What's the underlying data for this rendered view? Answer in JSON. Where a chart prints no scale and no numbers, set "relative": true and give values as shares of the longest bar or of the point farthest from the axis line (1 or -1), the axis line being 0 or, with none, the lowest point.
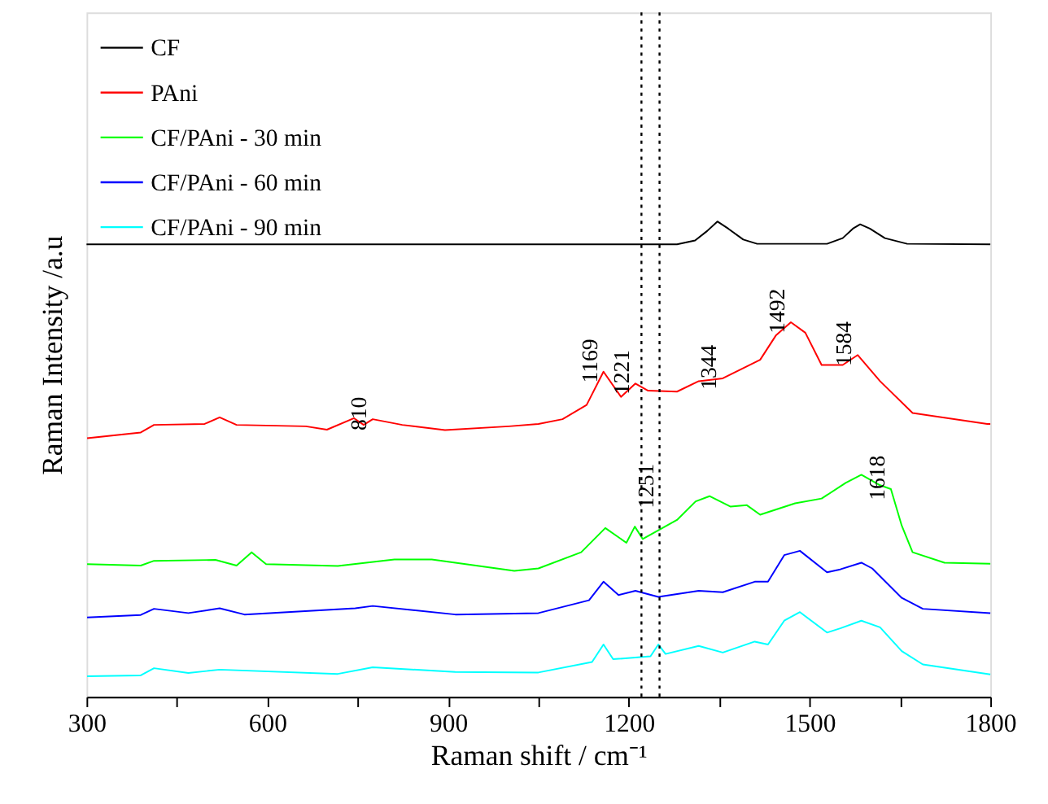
{
  "chart_data": {
    "type": "line",
    "relative": true,
    "xlabel": "Raman shift / cm⁻¹",
    "ylabel": "Raman Intensity /a.u",
    "xlim": [
      300,
      1800
    ],
    "xticks": [
      300,
      {
        "value": 450,
        "label": null
      },
      600,
      {
        "value": 750,
        "label": null
      },
      900,
      {
        "value": 1050,
        "label": null
      },
      1200,
      {
        "value": 1350,
        "label": null
      },
      1500,
      {
        "value": 1650,
        "label": null
      },
      1800
    ],
    "tick_labels": "x",
    "grid": false,
    "legend": "top left",
    "line_style": "solid",
    "marker": "none",
    "series": [
      {
        "name": "CF",
        "color": "#000000",
        "x": [
          300,
          1280,
          1310,
          1330,
          1347,
          1365,
          1390,
          1413,
          1529,
          1555,
          1572,
          1584,
          1600,
          1625,
          1662,
          1800
        ],
        "values": [
          0.952,
          0.952,
          0.96,
          0.98,
          1.0,
          0.985,
          0.962,
          0.953,
          0.953,
          0.965,
          0.985,
          0.994,
          0.985,
          0.965,
          0.953,
          0.952
        ]
      },
      {
        "name": "PAni",
        "color": "#ff0000",
        "x": [
          301,
          390,
          412,
          496,
          521,
          549,
          664,
          699,
          744,
          760,
          775,
          824,
          895,
          1001,
          1050,
          1090,
          1130,
          1158,
          1187,
          1211,
          1232,
          1280,
          1316,
          1356,
          1418,
          1444,
          1469,
          1493,
          1520,
          1555,
          1580,
          1617,
          1671,
          1795,
          1800
        ],
        "values": [
          0.544,
          0.556,
          0.572,
          0.574,
          0.588,
          0.572,
          0.569,
          0.562,
          0.586,
          0.572,
          0.584,
          0.572,
          0.561,
          0.569,
          0.574,
          0.584,
          0.614,
          0.684,
          0.631,
          0.659,
          0.644,
          0.642,
          0.664,
          0.67,
          0.709,
          0.76,
          0.788,
          0.766,
          0.698,
          0.698,
          0.719,
          0.664,
          0.597,
          0.574,
          0.574
        ]
      },
      {
        "name": "CF/PAni - 30 min",
        "color": "#00ff00",
        "x": [
          301,
          390,
          412,
          514,
          549,
          574,
          598,
          717,
          811,
          873,
          1010,
          1050,
          1121,
          1161,
          1196,
          1210,
          1223,
          1280,
          1311,
          1334,
          1369,
          1396,
          1418,
          1476,
          1520,
          1560,
          1586,
          1617,
          1635,
          1653,
          1671,
          1724,
          1800
        ],
        "values": [
          0.279,
          0.276,
          0.286,
          0.288,
          0.276,
          0.304,
          0.279,
          0.275,
          0.289,
          0.289,
          0.265,
          0.27,
          0.304,
          0.355,
          0.324,
          0.358,
          0.332,
          0.372,
          0.411,
          0.422,
          0.4,
          0.403,
          0.383,
          0.407,
          0.417,
          0.45,
          0.467,
          0.445,
          0.437,
          0.36,
          0.304,
          0.282,
          0.28
        ]
      },
      {
        "name": "CF/PAni - 60 min",
        "color": "#0000ff",
        "x": [
          301,
          390,
          412,
          469,
          521,
          562,
          746,
          775,
          912,
          1050,
          1134,
          1158,
          1183,
          1211,
          1249,
          1316,
          1356,
          1409,
          1431,
          1458,
          1484,
          1529,
          1551,
          1586,
          1604,
          1653,
          1688,
          1800
        ],
        "values": [
          0.167,
          0.172,
          0.185,
          0.176,
          0.186,
          0.173,
          0.186,
          0.191,
          0.173,
          0.176,
          0.203,
          0.242,
          0.214,
          0.223,
          0.21,
          0.223,
          0.22,
          0.242,
          0.242,
          0.298,
          0.307,
          0.262,
          0.268,
          0.282,
          0.27,
          0.208,
          0.185,
          0.176
        ]
      },
      {
        "name": "CF/PAni - 90 min",
        "color": "#00ffff",
        "x": [
          301,
          390,
          412,
          469,
          521,
          717,
          775,
          912,
          1050,
          1139,
          1158,
          1174,
          1236,
          1249,
          1261,
          1316,
          1356,
          1409,
          1431,
          1458,
          1484,
          1529,
          1551,
          1586,
          1617,
          1653,
          1688,
          1800
        ],
        "values": [
          0.043,
          0.045,
          0.06,
          0.05,
          0.057,
          0.048,
          0.062,
          0.052,
          0.051,
          0.073,
          0.11,
          0.079,
          0.085,
          0.11,
          0.09,
          0.107,
          0.093,
          0.116,
          0.11,
          0.16,
          0.178,
          0.135,
          0.144,
          0.16,
          0.146,
          0.096,
          0.068,
          0.047
        ]
      }
    ],
    "ref_lines": [
      {
        "axis": "x",
        "value": 1221,
        "color": "#000000",
        "line_style": "dotted"
      },
      {
        "axis": "x",
        "value": 1251,
        "color": "#000000",
        "line_style": "dotted"
      }
    ],
    "annotations": [
      {
        "text": "810",
        "x": 775,
        "y": 0.584
      },
      {
        "text": "1169",
        "x": 1158,
        "y": 0.684
      },
      {
        "text": "1221",
        "x": 1211,
        "y": 0.659
      },
      {
        "text": "1344",
        "x": 1356,
        "y": 0.67
      },
      {
        "text": "1492",
        "x": 1469,
        "y": 0.788
      },
      {
        "text": "1584",
        "x": 1580,
        "y": 0.719
      },
      {
        "text": "1251",
        "x": 1251,
        "y": 0.42
      },
      {
        "text": "1618",
        "x": 1635,
        "y": 0.437
      }
    ]
  }
}
